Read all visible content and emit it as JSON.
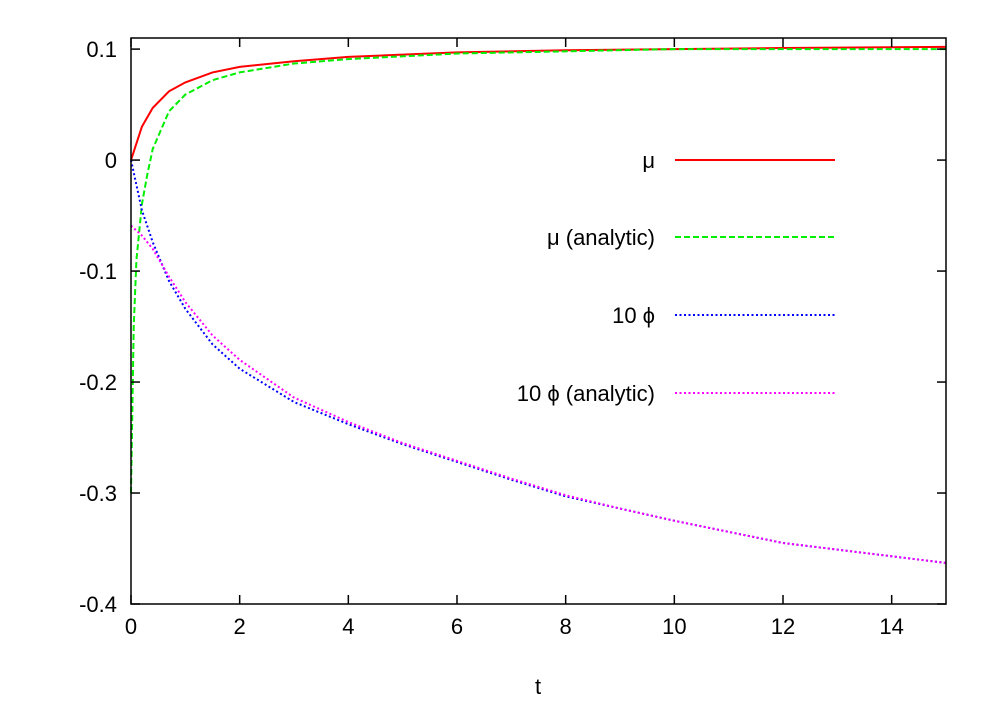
{
  "chart_data": {
    "type": "line",
    "title": "",
    "xlabel": "t",
    "ylabel": "",
    "xlim": [
      0,
      15
    ],
    "ylim": [
      -0.4,
      0.11
    ],
    "grid": false,
    "legend_position": "center-right",
    "x_ticks": [
      "0",
      "2",
      "4",
      "6",
      "8",
      "10",
      "12",
      "14"
    ],
    "y_ticks": [
      "0.1",
      "0",
      "-0.1",
      "-0.2",
      "-0.3",
      "-0.4"
    ],
    "series": [
      {
        "name": "μ",
        "color": "#ff0000",
        "style": "solid",
        "x": [
          0,
          0.2,
          0.4,
          0.7,
          1,
          1.5,
          2,
          3,
          4,
          6,
          8,
          10,
          12,
          15
        ],
        "y": [
          0,
          0.03,
          0.047,
          0.062,
          0.07,
          0.079,
          0.084,
          0.089,
          0.093,
          0.097,
          0.099,
          0.1,
          0.101,
          0.102
        ]
      },
      {
        "name": "μ (analytic)",
        "color": "#00ee00",
        "style": "dashed",
        "x": [
          0,
          0.05,
          0.1,
          0.2,
          0.3,
          0.4,
          0.7,
          1,
          1.5,
          2,
          3,
          4,
          6,
          8,
          10,
          12,
          15
        ],
        "y": [
          -0.3,
          -0.15,
          -0.09,
          -0.04,
          -0.013,
          0.01,
          0.044,
          0.059,
          0.072,
          0.079,
          0.087,
          0.091,
          0.096,
          0.098,
          0.1,
          0.1,
          0.1
        ]
      },
      {
        "name": "10 ϕ",
        "color": "#0000ff",
        "style": "dotted",
        "x": [
          0,
          0.2,
          0.4,
          0.7,
          1,
          1.5,
          2,
          3,
          4,
          5,
          6,
          7,
          8,
          9,
          10,
          12,
          15
        ],
        "y": [
          0,
          -0.045,
          -0.074,
          -0.109,
          -0.134,
          -0.166,
          -0.188,
          -0.218,
          -0.238,
          -0.256,
          -0.272,
          -0.288,
          -0.303,
          -0.314,
          -0.325,
          -0.345,
          -0.363
        ]
      },
      {
        "name": "10 ϕ (analytic)",
        "color": "#ff00ff",
        "style": "dotted",
        "x": [
          0,
          0.2,
          0.4,
          0.7,
          1,
          1.5,
          2,
          3,
          4,
          5,
          6,
          7,
          8,
          9,
          10,
          12,
          15
        ],
        "y": [
          -0.059,
          -0.068,
          -0.08,
          -0.105,
          -0.128,
          -0.158,
          -0.18,
          -0.214,
          -0.236,
          -0.255,
          -0.271,
          -0.287,
          -0.302,
          -0.314,
          -0.325,
          -0.345,
          -0.363
        ]
      }
    ]
  }
}
